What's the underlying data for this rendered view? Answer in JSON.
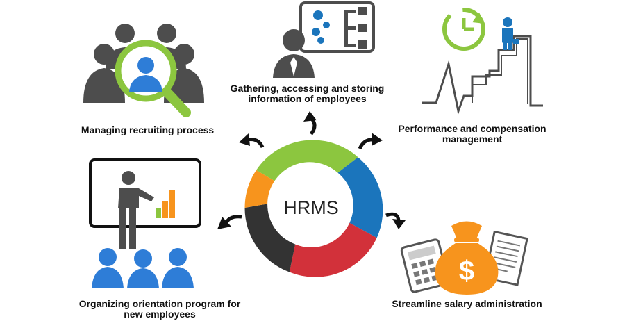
{
  "center": {
    "title": "HRMS"
  },
  "nodes": {
    "recruiting": {
      "label": "Managing recruiting process"
    },
    "information": {
      "line1": "Gathering, accessing and storing",
      "line2": "information of employees"
    },
    "performance": {
      "line1": "Performance and compensation",
      "line2": "management"
    },
    "orientation": {
      "line1": "Organizing orientation program for",
      "line2": "new employees"
    },
    "salary": {
      "label": "Streamline salary administration"
    }
  },
  "dollar_symbol": "$",
  "colors": {
    "green": "#8cc63f",
    "blue": "#1b75bc",
    "red": "#d2313a",
    "dark": "#333333",
    "orange": "#f7941d",
    "people_blue": "#2e7dd7",
    "text": "#111111"
  }
}
